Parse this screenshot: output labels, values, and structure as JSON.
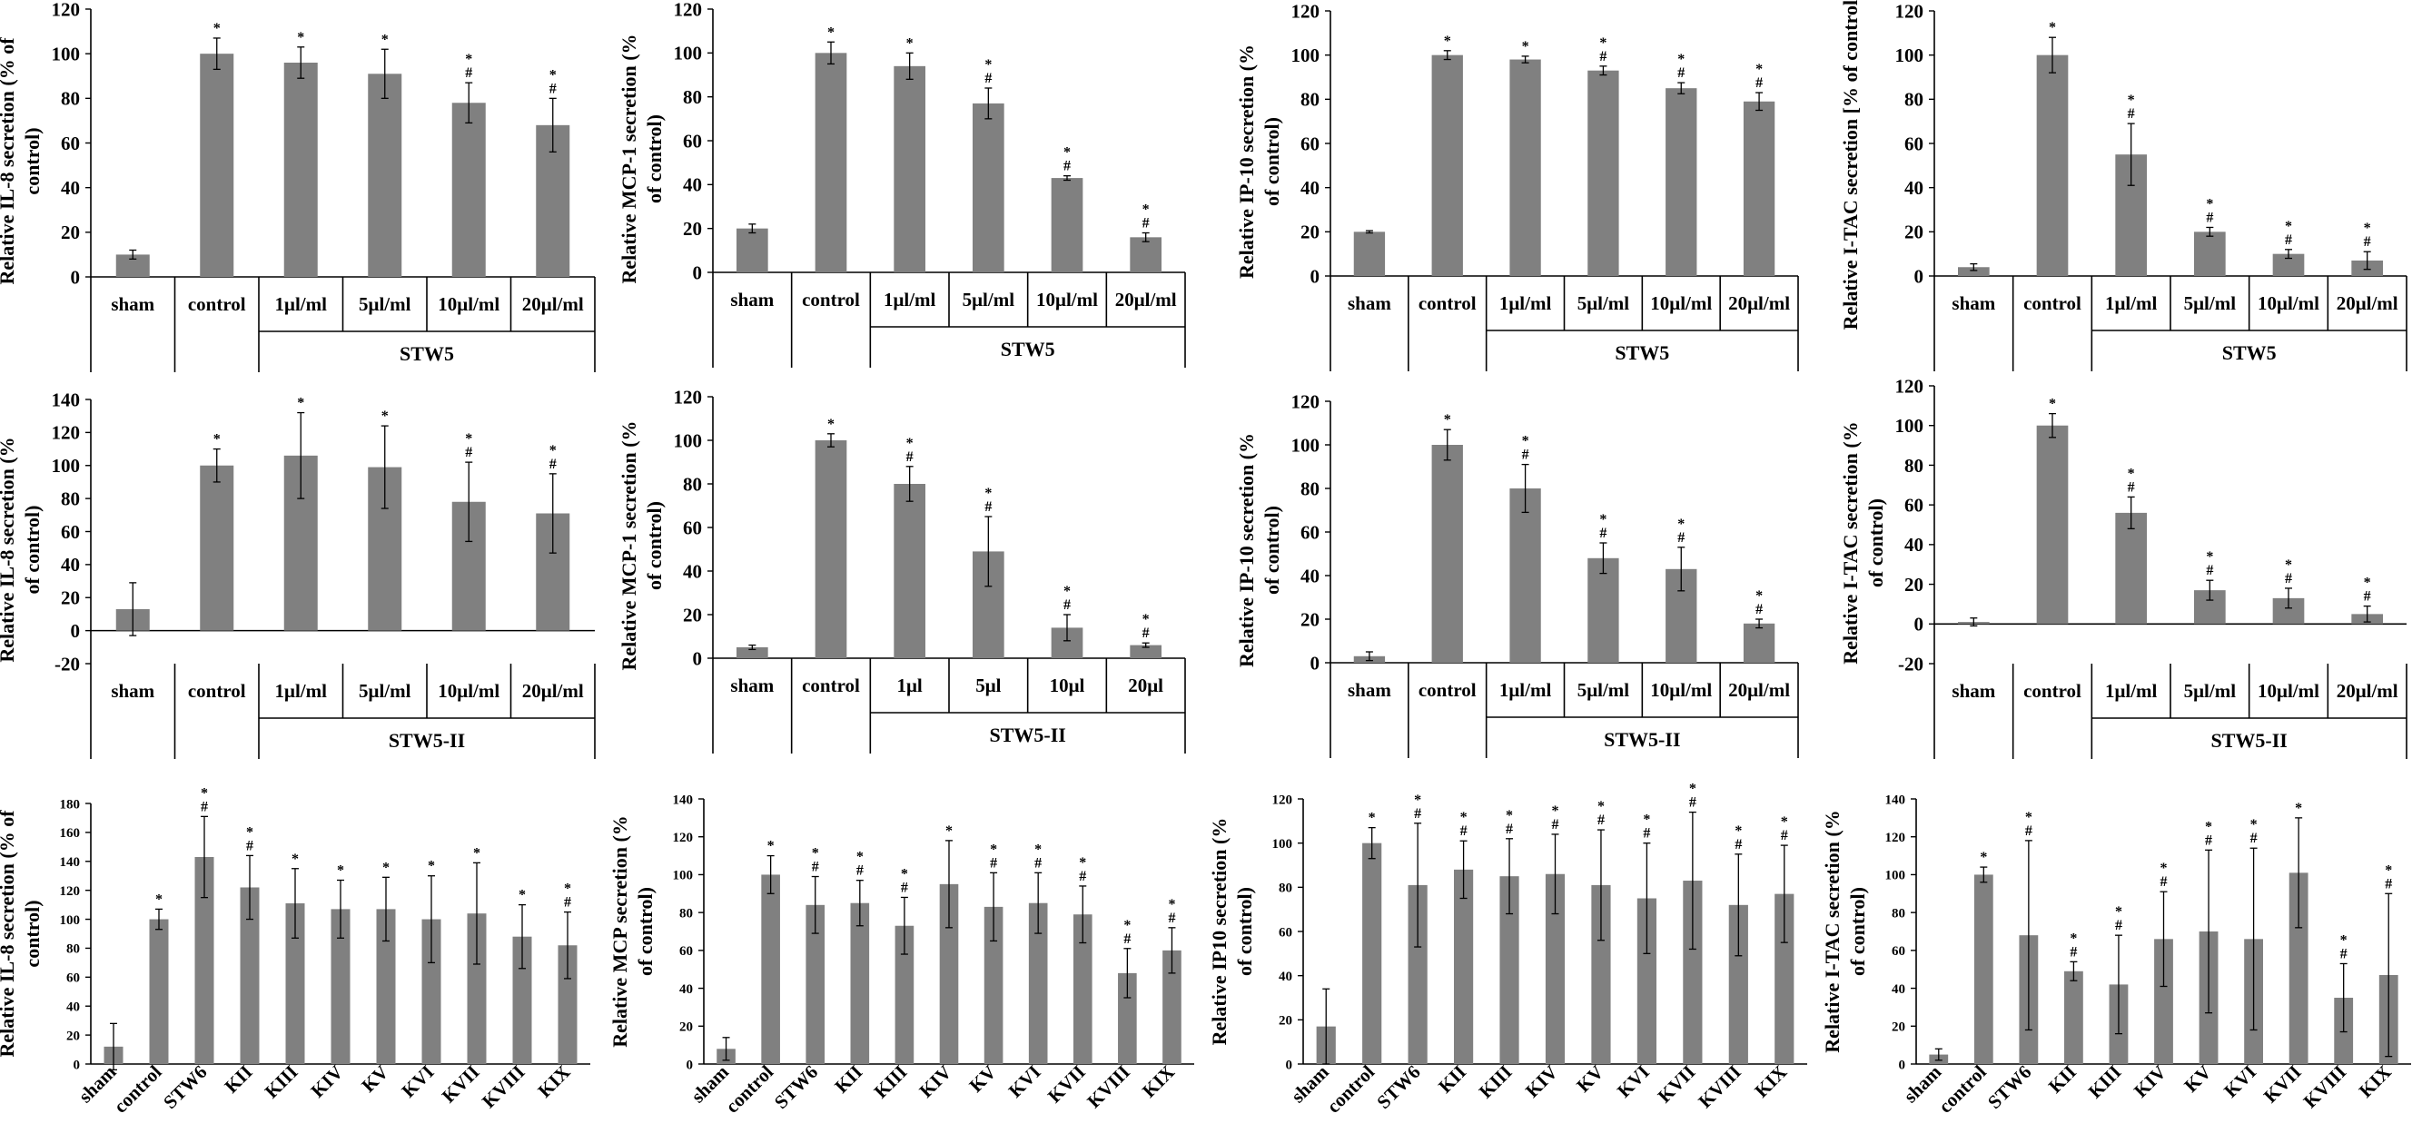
{
  "chart_data": [
    {
      "id": "r1c1",
      "type": "bar",
      "ylabel": "Relative IL-8 secretion (% of control)",
      "ylim": [
        0,
        120
      ],
      "ystep": 20,
      "categories": [
        "sham",
        "control",
        "1μl/ml",
        "5μl/ml",
        "10μl/ml",
        "20μl/ml"
      ],
      "values": [
        10,
        100,
        96,
        91,
        78,
        68
      ],
      "errors": [
        2,
        7,
        7,
        11,
        9,
        12
      ],
      "marks": [
        "",
        "*",
        "*",
        "*",
        "*\n#",
        "*\n#"
      ],
      "group_label": "STW5"
    },
    {
      "id": "r1c2",
      "type": "bar",
      "ylabel": "Relative MCP-1 secretion (% of control)",
      "ylim": [
        0,
        120
      ],
      "ystep": 20,
      "categories": [
        "sham",
        "control",
        "1μl/ml",
        "5μl/ml",
        "10μl/ml",
        "20μl/ml"
      ],
      "values": [
        20,
        100,
        94,
        77,
        43,
        16
      ],
      "errors": [
        2,
        5,
        6,
        7,
        1,
        2
      ],
      "marks": [
        "",
        "*",
        "*",
        "*\n#",
        "*\n#",
        "*\n#"
      ],
      "group_label": "STW5"
    },
    {
      "id": "r1c3",
      "type": "bar",
      "ylabel": "Relative IP-10 secretion (% of control)",
      "ylim": [
        0,
        120
      ],
      "ystep": 20,
      "categories": [
        "sham",
        "control",
        "1μl/ml",
        "5μl/ml",
        "10μl/ml",
        "20μl/ml"
      ],
      "values": [
        20,
        100,
        98,
        93,
        85,
        79
      ],
      "errors": [
        0.5,
        2,
        1.5,
        2,
        2.5,
        4
      ],
      "marks": [
        "",
        "*",
        "*",
        "*\n#",
        "*\n#",
        "*\n#"
      ],
      "group_label": "STW5"
    },
    {
      "id": "r1c4",
      "type": "bar",
      "ylabel": "Relative I-TAC secretion [% of control)",
      "ylim": [
        0,
        120
      ],
      "ystep": 20,
      "categories": [
        "sham",
        "control",
        "1μl/ml",
        "5μl/ml",
        "10μl/ml",
        "20μl/ml"
      ],
      "values": [
        4,
        100,
        55,
        20,
        10,
        7
      ],
      "errors": [
        1.5,
        8,
        14,
        2,
        2,
        4
      ],
      "marks": [
        "",
        "*",
        "*\n#",
        "*\n#",
        "*\n#",
        "*\n#"
      ],
      "group_label": "STW5"
    },
    {
      "id": "r2c1",
      "type": "bar",
      "ylabel": "Relative IL-8 secretion (% of control)",
      "ylim": [
        -20,
        140
      ],
      "ystep": 20,
      "categories": [
        "sham",
        "control",
        "1μl/ml",
        "5μl/ml",
        "10μl/ml",
        "20μl/ml"
      ],
      "values": [
        13,
        100,
        106,
        99,
        78,
        71
      ],
      "errors": [
        16,
        10,
        26,
        25,
        24,
        24
      ],
      "marks": [
        "",
        "*",
        "*",
        "*",
        "*\n#",
        "*\n#"
      ],
      "group_label": "STW5-II"
    },
    {
      "id": "r2c2",
      "type": "bar",
      "ylabel": "Relative MCP-1 secretion (% of control)",
      "ylim": [
        0,
        120
      ],
      "ystep": 20,
      "categories": [
        "sham",
        "control",
        "1μl",
        "5μl",
        "10μl",
        "20μl"
      ],
      "values": [
        5,
        100,
        80,
        49,
        14,
        6
      ],
      "errors": [
        1,
        3,
        8,
        16,
        6,
        1
      ],
      "marks": [
        "",
        "*",
        "*\n#",
        "*\n#",
        "*\n#",
        "*\n#"
      ],
      "group_label": "STW5-II"
    },
    {
      "id": "r2c3",
      "type": "bar",
      "ylabel": "Relative IP-10 secretion (% of control)",
      "ylim": [
        0,
        120
      ],
      "ystep": 20,
      "categories": [
        "sham",
        "control",
        "1μl/ml",
        "5μl/ml",
        "10μl/ml",
        "20μl/ml"
      ],
      "values": [
        3,
        100,
        80,
        48,
        43,
        18
      ],
      "errors": [
        2,
        7,
        11,
        7,
        10,
        2
      ],
      "marks": [
        "",
        "*",
        "*\n#",
        "*\n#",
        "*\n#",
        "*\n#"
      ],
      "group_label": "STW5-II"
    },
    {
      "id": "r2c4",
      "type": "bar",
      "ylabel": "Relative I-TAC secretion (% of control)",
      "ylim": [
        -20,
        120
      ],
      "ystep": 20,
      "categories": [
        "sham",
        "control",
        "1μl/ml",
        "5μl/ml",
        "10μl/ml",
        "20μl/ml"
      ],
      "values": [
        1,
        100,
        56,
        17,
        13,
        5
      ],
      "errors": [
        2,
        6,
        8,
        5,
        5,
        4
      ],
      "marks": [
        "",
        "*",
        "*\n#",
        "*\n#",
        "*\n#",
        "*\n#"
      ],
      "group_label": "STW5-II"
    },
    {
      "id": "r3c1",
      "type": "bar",
      "ylabel": "Relative IL-8 secretion (% of control)",
      "ylim": [
        0,
        180
      ],
      "ystep": 20,
      "categories": [
        "sham",
        "control",
        "STW6",
        "KII",
        "KIII",
        "KIV",
        "KV",
        "KVI",
        "KVII",
        "KVIII",
        "KIX"
      ],
      "values": [
        12,
        100,
        143,
        122,
        111,
        107,
        107,
        100,
        104,
        88,
        82
      ],
      "errors": [
        16,
        7,
        28,
        22,
        24,
        20,
        22,
        30,
        35,
        22,
        23
      ],
      "marks": [
        "",
        "*",
        "*\n#",
        "*\n#",
        "*",
        "*",
        "*",
        "*",
        "*",
        "*",
        "*\n#"
      ]
    },
    {
      "id": "r3c2",
      "type": "bar",
      "ylabel": "Relative MCP secretion (% of control)",
      "ylim": [
        0,
        140
      ],
      "ystep": 20,
      "categories": [
        "sham",
        "control",
        "STW6",
        "KII",
        "KIII",
        "KIV",
        "KV",
        "KVI",
        "KVII",
        "KVIII",
        "KIX"
      ],
      "values": [
        8,
        100,
        84,
        85,
        73,
        95,
        83,
        85,
        79,
        48,
        60
      ],
      "errors": [
        6,
        10,
        15,
        12,
        15,
        23,
        18,
        16,
        15,
        13,
        12
      ],
      "marks": [
        "",
        "*",
        "*\n#",
        "*\n#",
        "*\n#",
        "*",
        "*\n#",
        "*\n#",
        "*\n#",
        "*\n#",
        "*\n#"
      ]
    },
    {
      "id": "r3c3",
      "type": "bar",
      "ylabel": "Relative IP10 secretion (% of control)",
      "ylim": [
        0,
        120
      ],
      "ystep": 20,
      "categories": [
        "sham",
        "control",
        "STW6",
        "KII",
        "KIII",
        "KIV",
        "KV",
        "KVI",
        "KVII",
        "KVIII",
        "KIX"
      ],
      "values": [
        17,
        100,
        81,
        88,
        85,
        86,
        81,
        75,
        83,
        72,
        77
      ],
      "errors": [
        17,
        7,
        28,
        13,
        17,
        18,
        25,
        25,
        31,
        23,
        22
      ],
      "marks": [
        "",
        "*",
        "*\n#",
        "*\n#",
        "*\n#",
        "*\n#",
        "*\n#",
        "*\n#",
        "*\n#",
        "*\n#",
        "*\n#"
      ]
    },
    {
      "id": "r3c4",
      "type": "bar",
      "ylabel": "Relative I-TAC secretion (% of control)",
      "ylim": [
        0,
        140
      ],
      "ystep": 20,
      "categories": [
        "sham",
        "control",
        "STW6",
        "KII",
        "KIII",
        "KIV",
        "KV",
        "KVI",
        "KVII",
        "KVIII",
        "KIX"
      ],
      "values": [
        5,
        100,
        68,
        49,
        42,
        66,
        70,
        66,
        101,
        35,
        47
      ],
      "errors": [
        3,
        4,
        50,
        5,
        26,
        25,
        43,
        48,
        29,
        18,
        43
      ],
      "marks": [
        "",
        "*",
        "*\n#",
        "*\n#",
        "*\n#",
        "*\n#",
        "*\n#",
        "*\n#",
        "*",
        "*\n#",
        "*\n#"
      ]
    }
  ]
}
